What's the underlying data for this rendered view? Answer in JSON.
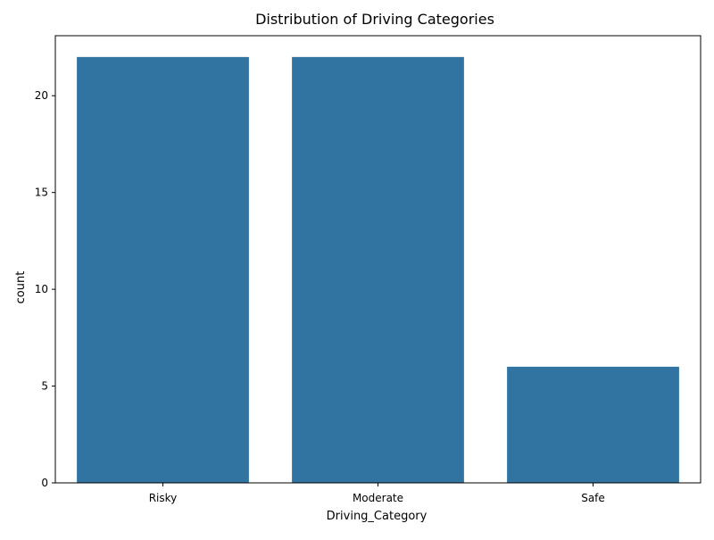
{
  "chart_data": {
    "type": "bar",
    "title": "Distribution of Driving Categories",
    "xlabel": "Driving_Category",
    "ylabel": "count",
    "categories": [
      "Risky",
      "Moderate",
      "Safe"
    ],
    "values": [
      22,
      22,
      6
    ],
    "ylim": [
      0,
      23.1
    ],
    "yticks": [
      0,
      5,
      10,
      15,
      20
    ],
    "grid": false,
    "bar_color": "#3274a1"
  }
}
